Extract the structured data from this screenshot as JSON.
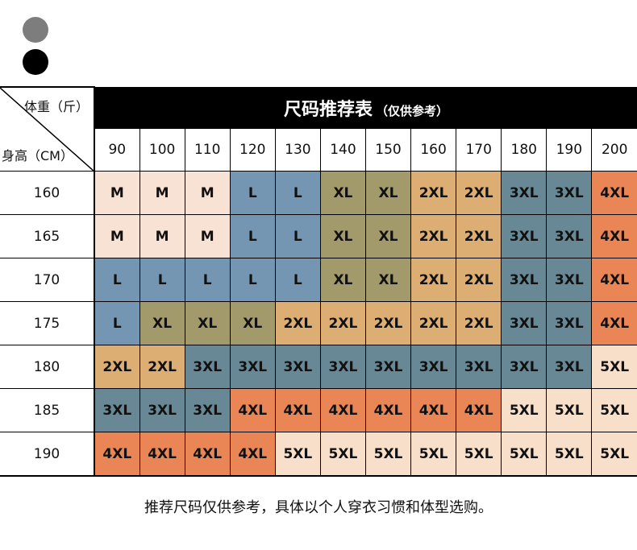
{
  "swatches": {
    "color_1": "#7d7d7d",
    "color_2": "#000000"
  },
  "table": {
    "corner_weight_label": "体重（斤）",
    "corner_height_label": "身高（CM）",
    "title_main": "尺码推荐表",
    "title_sub": "（仅供参考）",
    "weights": [
      "90",
      "100",
      "110",
      "120",
      "130",
      "140",
      "150",
      "160",
      "170",
      "180",
      "190",
      "200"
    ],
    "rows": [
      {
        "height": "160",
        "sizes": [
          "M",
          "M",
          "M",
          "L",
          "L",
          "XL",
          "XL",
          "2XL",
          "2XL",
          "3XL",
          "3XL",
          "4XL"
        ]
      },
      {
        "height": "165",
        "sizes": [
          "M",
          "M",
          "M",
          "L",
          "L",
          "XL",
          "XL",
          "2XL",
          "2XL",
          "3XL",
          "3XL",
          "4XL"
        ]
      },
      {
        "height": "170",
        "sizes": [
          "L",
          "L",
          "L",
          "L",
          "L",
          "XL",
          "XL",
          "2XL",
          "2XL",
          "3XL",
          "3XL",
          "4XL"
        ]
      },
      {
        "height": "175",
        "sizes": [
          "L",
          "XL",
          "XL",
          "XL",
          "2XL",
          "2XL",
          "2XL",
          "2XL",
          "2XL",
          "3XL",
          "3XL",
          "4XL"
        ]
      },
      {
        "height": "180",
        "sizes": [
          "2XL",
          "2XL",
          "3XL",
          "3XL",
          "3XL",
          "3XL",
          "3XL",
          "3XL",
          "3XL",
          "3XL",
          "3XL",
          "5XL"
        ]
      },
      {
        "height": "185",
        "sizes": [
          "3XL",
          "3XL",
          "3XL",
          "4XL",
          "4XL",
          "4XL",
          "4XL",
          "4XL",
          "4XL",
          "5XL",
          "5XL",
          "5XL"
        ]
      },
      {
        "height": "190",
        "sizes": [
          "4XL",
          "4XL",
          "4XL",
          "4XL",
          "5XL",
          "5XL",
          "5XL",
          "5XL",
          "5XL",
          "5XL",
          "5XL",
          "5XL"
        ]
      }
    ],
    "size_colors": {
      "M": "#f8e2d3",
      "L": "#7596b3",
      "XL": "#a39a6c",
      "2XL": "#ddae73",
      "3XL": "#678894",
      "4XL": "#ea8655",
      "5XL": "#f8dfca"
    }
  },
  "footnote": "推荐尺码仅供参考，具体以个人穿衣习惯和体型选购。"
}
